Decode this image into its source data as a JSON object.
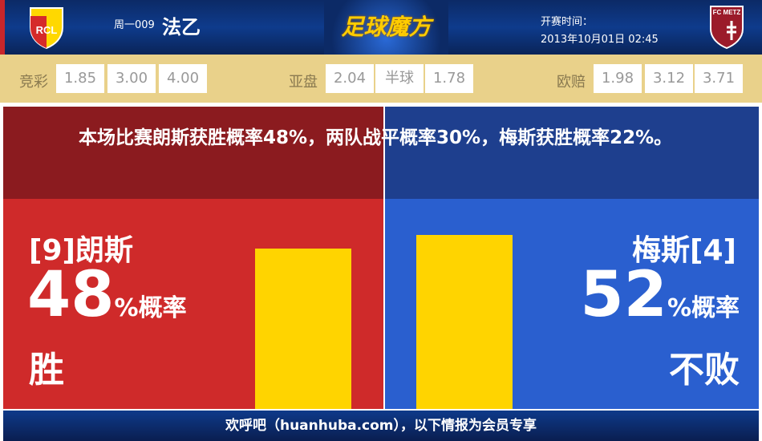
{
  "header": {
    "home_logo_text": "RCL",
    "away_logo_text": "FC METZ",
    "round": "周一009",
    "league": "法乙",
    "brand": "足球魔方",
    "kickoff_label": "开赛时间：",
    "kickoff_time": "2013年10月01日 02:45"
  },
  "odds": {
    "jingcai": {
      "label": "竞彩",
      "values": [
        "1.85",
        "3.00",
        "4.00"
      ]
    },
    "asian": {
      "label": "亚盘",
      "values": [
        "2.04",
        "半球",
        "1.78"
      ]
    },
    "euro": {
      "label": "欧赔",
      "values": [
        "1.98",
        "3.12",
        "3.71"
      ]
    }
  },
  "summary": "本场比赛朗斯获胜概率48%，两队战平概率30%，梅斯获胜概率22%。",
  "home": {
    "name": "[9]朗斯",
    "percent": "48",
    "unit": "%概率",
    "result": "胜",
    "bar_value": 48,
    "color": "#cf2a2a"
  },
  "away": {
    "name": "梅斯[4]",
    "percent": "52",
    "unit": "%概率",
    "result": "不败",
    "bar_value": 52,
    "color": "#2a5fcf"
  },
  "bar_color": "#ffd400",
  "footer": "欢呼吧（huanhuba.com），以下情报为会员专享"
}
